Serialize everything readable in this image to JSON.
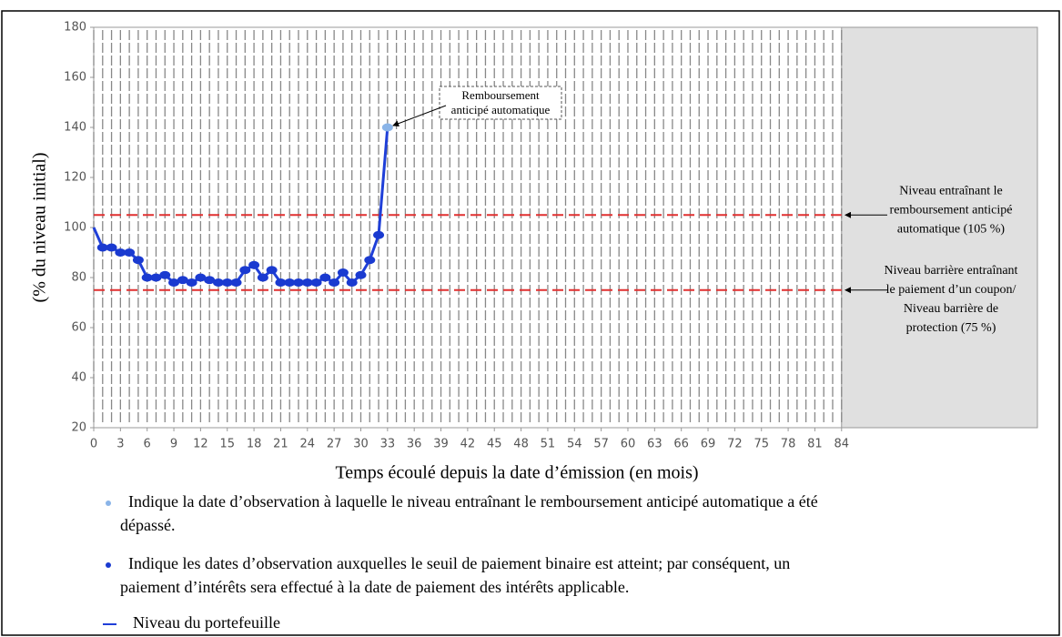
{
  "chart_data": {
    "type": "line",
    "xlabel": "Temps écoulé depuis la date d’émission (en mois)",
    "ylabel": "(% du niveau initial)",
    "x": [
      0,
      1,
      2,
      3,
      4,
      5,
      6,
      7,
      8,
      9,
      10,
      11,
      12,
      13,
      14,
      15,
      16,
      17,
      18,
      19,
      20,
      21,
      22,
      23,
      24,
      25,
      26,
      27,
      28,
      29,
      30,
      31,
      32,
      33
    ],
    "series": [
      {
        "name": "Niveau du portefeuille",
        "color": "#1f3fd8",
        "values": [
          100,
          92,
          92,
          90,
          90,
          87,
          80,
          80,
          81,
          78,
          79,
          78,
          80,
          79,
          78,
          78,
          78,
          83,
          85,
          80,
          83,
          78,
          78,
          78,
          78,
          78,
          80,
          78,
          82,
          78,
          81,
          87,
          97,
          140
        ]
      }
    ],
    "marker_color": "#1a3ad0",
    "autocall_marker_color": "#8ab4e8",
    "xlim": [
      0,
      106
    ],
    "ylim": [
      20,
      180
    ],
    "xticks": [
      0,
      3,
      6,
      9,
      12,
      15,
      18,
      21,
      24,
      27,
      30,
      33,
      36,
      39,
      42,
      45,
      48,
      51,
      54,
      57,
      60,
      63,
      66,
      69,
      72,
      75,
      78,
      81,
      84
    ],
    "xminorticks": [
      0,
      1,
      2,
      3,
      4,
      5,
      6,
      7,
      8,
      9,
      10,
      11,
      12,
      13,
      14,
      15,
      16,
      17,
      18,
      19,
      20,
      21,
      22,
      23,
      24,
      25,
      26,
      27,
      28,
      29,
      30,
      31,
      32,
      33,
      34,
      35,
      36,
      37,
      38,
      39,
      40,
      41,
      42,
      43,
      44,
      45,
      46,
      47,
      48,
      49,
      50,
      51,
      52,
      53,
      54,
      55,
      56,
      57,
      58,
      59,
      60,
      61,
      62,
      63,
      64,
      65,
      66,
      67,
      68,
      69,
      70,
      71,
      72,
      73,
      74,
      75,
      76,
      77,
      78,
      79,
      80,
      81,
      82,
      83,
      84
    ],
    "yticks": [
      20,
      40,
      60,
      80,
      100,
      120,
      140,
      160,
      180
    ],
    "shaded_from": 84,
    "levels": [
      {
        "value": 105,
        "color": "#e03030",
        "label_lines": [
          "Niveau entraînant  le",
          "remboursement anticipé",
          "automatique (105 %)"
        ]
      },
      {
        "value": 75,
        "color": "#e03030",
        "label_lines": [
          "Niveau barrière entraînant",
          "le paiement d’un coupon/",
          "Niveau barrière de",
          "protection (75 %)"
        ]
      }
    ],
    "annotation": {
      "lines": [
        "Remboursement",
        "anticipé automatique"
      ],
      "index": 33
    },
    "legend": [
      {
        "marker": "autocall",
        "lines": [
          "Indique la date d’observation à laquelle le niveau entraînant le remboursement anticipé automatique a été",
          "dépassé."
        ]
      },
      {
        "marker": "coupon",
        "lines": [
          "Indique les dates d’observation auxquelles le seuil de paiement binaire est atteint; par conséquent, un",
          "paiement d’intérêts sera effectué à la date de paiement des intérêts applicable."
        ]
      },
      {
        "marker": "line",
        "lines": [
          "Niveau du portefeuille"
        ]
      }
    ]
  }
}
